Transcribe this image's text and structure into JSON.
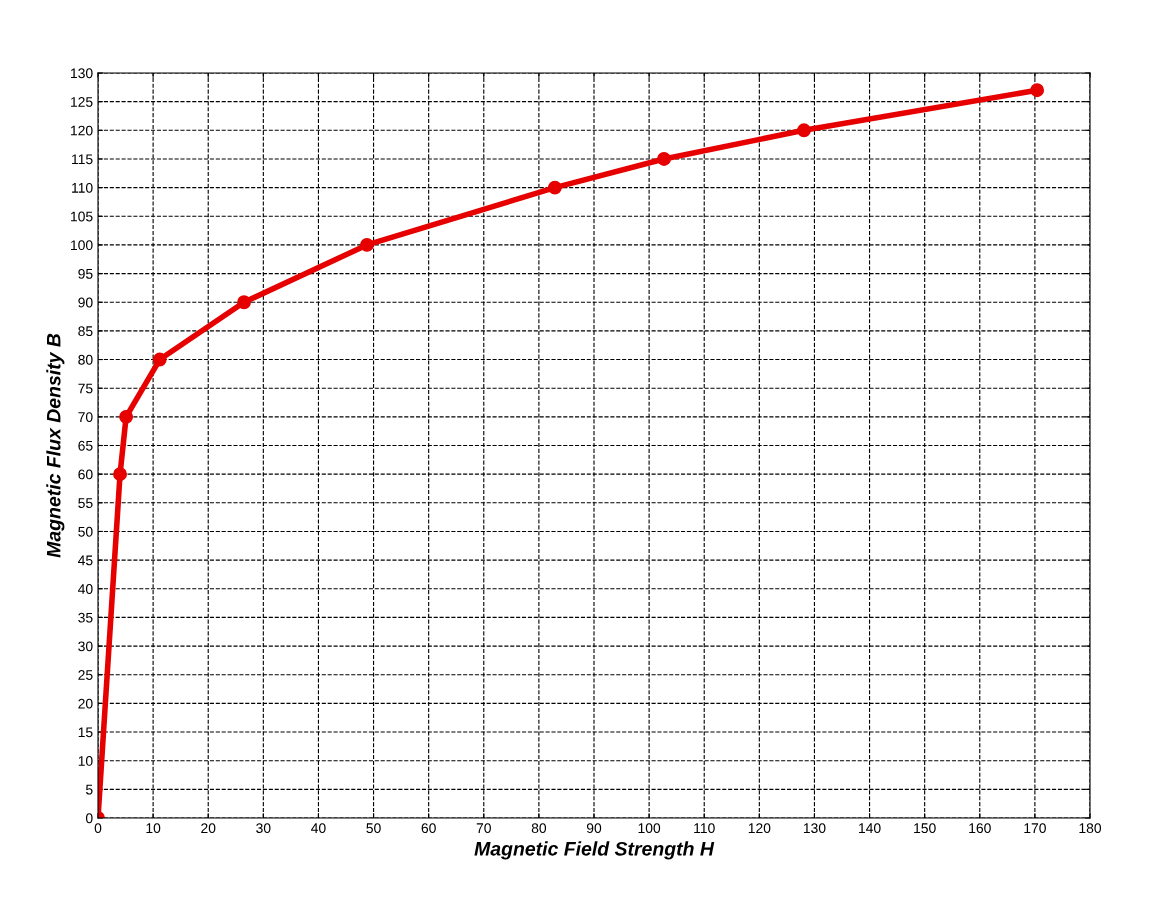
{
  "chart_data": {
    "type": "line",
    "xlabel": "Magnetic Field Strength H",
    "ylabel": "Magnetic Flux Density B",
    "x": [
      0,
      4,
      5.1,
      11.2,
      26.5,
      48.8,
      82.9,
      102.7,
      128.1,
      170.4
    ],
    "series": [
      {
        "color": "#e60000",
        "values": [
          0,
          60,
          70,
          80,
          90,
          100,
          110,
          115,
          120,
          127
        ]
      }
    ],
    "xlim": [
      0,
      180
    ],
    "xticks": [
      0,
      10,
      20,
      30,
      40,
      50,
      60,
      70,
      80,
      90,
      100,
      110,
      120,
      130,
      140,
      150,
      160,
      170,
      180
    ],
    "ylim": [
      0,
      130
    ],
    "yticks": [
      0,
      5,
      10,
      15,
      20,
      25,
      30,
      35,
      40,
      45,
      50,
      55,
      60,
      65,
      70,
      75,
      80,
      85,
      90,
      95,
      100,
      105,
      110,
      115,
      120,
      125,
      130
    ],
    "grid": true,
    "marker": "circle",
    "line_style": "solid"
  }
}
